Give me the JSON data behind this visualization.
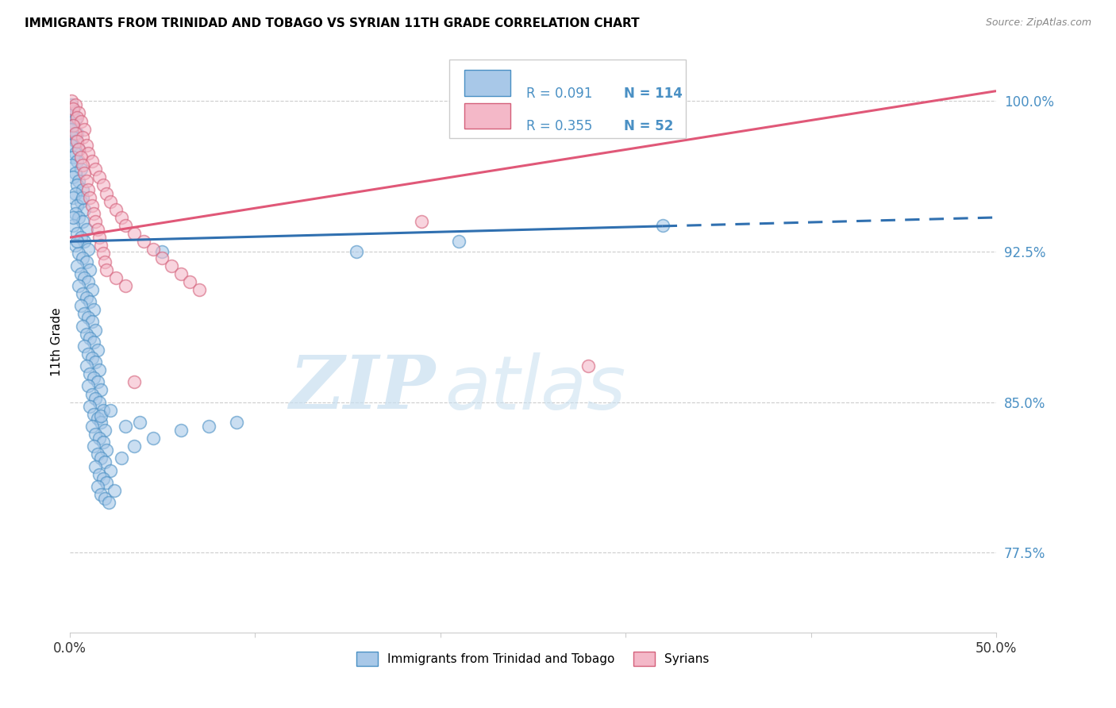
{
  "title": "IMMIGRANTS FROM TRINIDAD AND TOBAGO VS SYRIAN 11TH GRADE CORRELATION CHART",
  "source": "Source: ZipAtlas.com",
  "ylabel": "11th Grade",
  "ytick_labels": [
    "77.5%",
    "85.0%",
    "92.5%",
    "100.0%"
  ],
  "ytick_values": [
    0.775,
    0.85,
    0.925,
    1.0
  ],
  "xlim": [
    0.0,
    0.5
  ],
  "ylim": [
    0.735,
    1.025
  ],
  "legend_r_blue": "R = 0.091",
  "legend_n_blue": "N = 114",
  "legend_r_pink": "R = 0.355",
  "legend_n_pink": "N = 52",
  "watermark_zip": "ZIP",
  "watermark_atlas": "atlas",
  "color_blue_fill": "#a8c8e8",
  "color_blue_edge": "#4a90c4",
  "color_pink_fill": "#f4b8c8",
  "color_pink_edge": "#d4607a",
  "color_blue_line": "#3070b0",
  "color_pink_line": "#e05878",
  "color_ytick": "#4a90c4",
  "color_xtick": "#333333",
  "blue_line_y0": 0.93,
  "blue_line_y1": 0.942,
  "blue_line_x_solid_end": 0.32,
  "pink_line_y0": 0.932,
  "pink_line_y1": 1.005,
  "scatter_blue": [
    [
      0.001,
      0.998
    ],
    [
      0.002,
      0.995
    ],
    [
      0.001,
      0.993
    ],
    [
      0.003,
      0.991
    ],
    [
      0.002,
      0.988
    ],
    [
      0.001,
      0.986
    ],
    [
      0.004,
      0.984
    ],
    [
      0.002,
      0.982
    ],
    [
      0.003,
      0.98
    ],
    [
      0.001,
      0.978
    ],
    [
      0.005,
      0.976
    ],
    [
      0.003,
      0.974
    ],
    [
      0.002,
      0.972
    ],
    [
      0.004,
      0.97
    ],
    [
      0.001,
      0.968
    ],
    [
      0.006,
      0.966
    ],
    [
      0.003,
      0.964
    ],
    [
      0.002,
      0.962
    ],
    [
      0.005,
      0.96
    ],
    [
      0.004,
      0.958
    ],
    [
      0.007,
      0.956
    ],
    [
      0.003,
      0.954
    ],
    [
      0.002,
      0.952
    ],
    [
      0.006,
      0.95
    ],
    [
      0.004,
      0.948
    ],
    [
      0.008,
      0.946
    ],
    [
      0.003,
      0.944
    ],
    [
      0.005,
      0.942
    ],
    [
      0.007,
      0.94
    ],
    [
      0.002,
      0.938
    ],
    [
      0.009,
      0.936
    ],
    [
      0.004,
      0.934
    ],
    [
      0.006,
      0.932
    ],
    [
      0.008,
      0.93
    ],
    [
      0.003,
      0.928
    ],
    [
      0.01,
      0.926
    ],
    [
      0.005,
      0.924
    ],
    [
      0.007,
      0.922
    ],
    [
      0.009,
      0.92
    ],
    [
      0.004,
      0.918
    ],
    [
      0.011,
      0.916
    ],
    [
      0.006,
      0.914
    ],
    [
      0.008,
      0.912
    ],
    [
      0.01,
      0.91
    ],
    [
      0.005,
      0.908
    ],
    [
      0.012,
      0.906
    ],
    [
      0.007,
      0.904
    ],
    [
      0.009,
      0.902
    ],
    [
      0.011,
      0.9
    ],
    [
      0.006,
      0.898
    ],
    [
      0.013,
      0.896
    ],
    [
      0.008,
      0.894
    ],
    [
      0.01,
      0.892
    ],
    [
      0.012,
      0.89
    ],
    [
      0.007,
      0.888
    ],
    [
      0.014,
      0.886
    ],
    [
      0.009,
      0.884
    ],
    [
      0.011,
      0.882
    ],
    [
      0.013,
      0.88
    ],
    [
      0.008,
      0.878
    ],
    [
      0.015,
      0.876
    ],
    [
      0.01,
      0.874
    ],
    [
      0.012,
      0.872
    ],
    [
      0.014,
      0.87
    ],
    [
      0.009,
      0.868
    ],
    [
      0.016,
      0.866
    ],
    [
      0.011,
      0.864
    ],
    [
      0.013,
      0.862
    ],
    [
      0.015,
      0.86
    ],
    [
      0.01,
      0.858
    ],
    [
      0.017,
      0.856
    ],
    [
      0.012,
      0.854
    ],
    [
      0.014,
      0.852
    ],
    [
      0.016,
      0.85
    ],
    [
      0.011,
      0.848
    ],
    [
      0.018,
      0.846
    ],
    [
      0.013,
      0.844
    ],
    [
      0.015,
      0.842
    ],
    [
      0.017,
      0.84
    ],
    [
      0.012,
      0.838
    ],
    [
      0.019,
      0.836
    ],
    [
      0.014,
      0.834
    ],
    [
      0.016,
      0.832
    ],
    [
      0.018,
      0.83
    ],
    [
      0.013,
      0.828
    ],
    [
      0.02,
      0.826
    ],
    [
      0.015,
      0.824
    ],
    [
      0.017,
      0.822
    ],
    [
      0.019,
      0.82
    ],
    [
      0.014,
      0.818
    ],
    [
      0.022,
      0.816
    ],
    [
      0.016,
      0.814
    ],
    [
      0.018,
      0.812
    ],
    [
      0.02,
      0.81
    ],
    [
      0.015,
      0.808
    ],
    [
      0.024,
      0.806
    ],
    [
      0.017,
      0.804
    ],
    [
      0.019,
      0.802
    ],
    [
      0.021,
      0.8
    ],
    [
      0.028,
      0.822
    ],
    [
      0.035,
      0.828
    ],
    [
      0.045,
      0.832
    ],
    [
      0.06,
      0.836
    ],
    [
      0.075,
      0.838
    ],
    [
      0.09,
      0.84
    ],
    [
      0.21,
      0.93
    ],
    [
      0.155,
      0.925
    ],
    [
      0.32,
      0.938
    ],
    [
      0.017,
      0.843
    ],
    [
      0.022,
      0.846
    ],
    [
      0.03,
      0.838
    ],
    [
      0.038,
      0.84
    ],
    [
      0.05,
      0.925
    ],
    [
      0.004,
      0.93
    ],
    [
      0.002,
      0.942
    ],
    [
      0.007,
      0.952
    ]
  ],
  "scatter_pink": [
    [
      0.001,
      1.0
    ],
    [
      0.003,
      0.998
    ],
    [
      0.002,
      0.996
    ],
    [
      0.005,
      0.994
    ],
    [
      0.004,
      0.992
    ],
    [
      0.006,
      0.99
    ],
    [
      0.002,
      0.988
    ],
    [
      0.008,
      0.986
    ],
    [
      0.003,
      0.984
    ],
    [
      0.007,
      0.982
    ],
    [
      0.004,
      0.98
    ],
    [
      0.009,
      0.978
    ],
    [
      0.005,
      0.976
    ],
    [
      0.01,
      0.974
    ],
    [
      0.006,
      0.972
    ],
    [
      0.012,
      0.97
    ],
    [
      0.007,
      0.968
    ],
    [
      0.014,
      0.966
    ],
    [
      0.008,
      0.964
    ],
    [
      0.016,
      0.962
    ],
    [
      0.009,
      0.96
    ],
    [
      0.018,
      0.958
    ],
    [
      0.01,
      0.956
    ],
    [
      0.02,
      0.954
    ],
    [
      0.011,
      0.952
    ],
    [
      0.022,
      0.95
    ],
    [
      0.012,
      0.948
    ],
    [
      0.025,
      0.946
    ],
    [
      0.013,
      0.944
    ],
    [
      0.028,
      0.942
    ],
    [
      0.014,
      0.94
    ],
    [
      0.03,
      0.938
    ],
    [
      0.015,
      0.936
    ],
    [
      0.035,
      0.934
    ],
    [
      0.016,
      0.932
    ],
    [
      0.04,
      0.93
    ],
    [
      0.017,
      0.928
    ],
    [
      0.045,
      0.926
    ],
    [
      0.018,
      0.924
    ],
    [
      0.05,
      0.922
    ],
    [
      0.019,
      0.92
    ],
    [
      0.055,
      0.918
    ],
    [
      0.02,
      0.916
    ],
    [
      0.06,
      0.914
    ],
    [
      0.025,
      0.912
    ],
    [
      0.065,
      0.91
    ],
    [
      0.03,
      0.908
    ],
    [
      0.07,
      0.906
    ],
    [
      0.035,
      0.86
    ],
    [
      0.3,
      0.99
    ],
    [
      0.28,
      0.868
    ],
    [
      0.19,
      0.94
    ]
  ]
}
